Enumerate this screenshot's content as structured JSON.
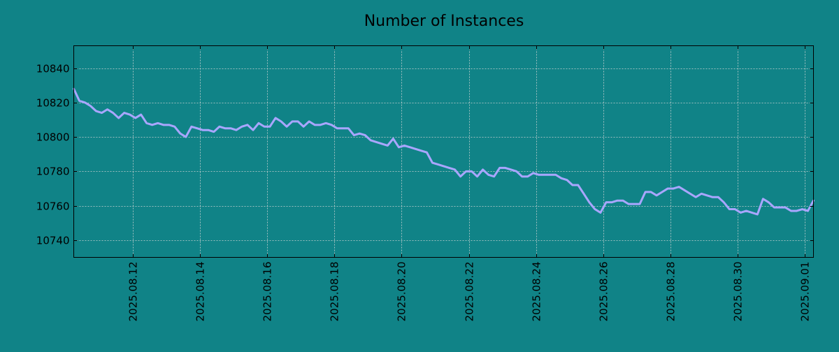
{
  "page": {
    "background_color": "#108387"
  },
  "chart_data": {
    "type": "line",
    "title": "Number of Instances",
    "xlabel": "",
    "ylabel": "",
    "x_range": [
      "2025.08.10 06:00",
      "2025.09.01 06:00"
    ],
    "ylim": [
      10730,
      10853
    ],
    "grid": true,
    "line_color": "#a9a6ff",
    "x_ticks": [
      "2025.08.12",
      "2025.08.14",
      "2025.08.16",
      "2025.08.18",
      "2025.08.20",
      "2025.08.22",
      "2025.08.24",
      "2025.08.26",
      "2025.08.28",
      "2025.08.30",
      "2025.09.01"
    ],
    "y_ticks": [
      10740,
      10760,
      10780,
      10800,
      10820,
      10840
    ],
    "series": [
      {
        "name": "",
        "x": [
          "2025.08.10 06:00",
          "2025.08.10 10:00",
          "2025.08.10 14:00",
          "2025.08.10 18:00",
          "2025.08.10 22:00",
          "2025.08.11 02:00",
          "2025.08.11 06:00",
          "2025.08.11 10:00",
          "2025.08.11 14:00",
          "2025.08.11 18:00",
          "2025.08.11 22:00",
          "2025.08.12 02:00",
          "2025.08.12 06:00",
          "2025.08.12 10:00",
          "2025.08.12 14:00",
          "2025.08.12 18:00",
          "2025.08.12 22:00",
          "2025.08.13 02:00",
          "2025.08.13 06:00",
          "2025.08.13 10:00",
          "2025.08.13 14:00",
          "2025.08.13 18:00",
          "2025.08.13 22:00",
          "2025.08.14 02:00",
          "2025.08.14 06:00",
          "2025.08.14 10:00",
          "2025.08.14 14:00",
          "2025.08.14 18:00",
          "2025.08.14 22:00",
          "2025.08.15 02:00",
          "2025.08.15 06:00",
          "2025.08.15 10:00",
          "2025.08.15 14:00",
          "2025.08.15 18:00",
          "2025.08.15 22:00",
          "2025.08.16 02:00",
          "2025.08.16 06:00",
          "2025.08.16 10:00",
          "2025.08.16 14:00",
          "2025.08.16 18:00",
          "2025.08.16 22:00",
          "2025.08.17 02:00",
          "2025.08.17 06:00",
          "2025.08.17 10:00",
          "2025.08.17 14:00",
          "2025.08.17 18:00",
          "2025.08.17 22:00",
          "2025.08.18 02:00",
          "2025.08.18 06:00",
          "2025.08.18 10:00",
          "2025.08.18 14:00",
          "2025.08.18 18:00",
          "2025.08.18 22:00",
          "2025.08.19 02:00",
          "2025.08.19 06:00",
          "2025.08.19 10:00",
          "2025.08.19 14:00",
          "2025.08.19 18:00",
          "2025.08.19 22:00",
          "2025.08.20 02:00",
          "2025.08.20 06:00",
          "2025.08.20 10:00",
          "2025.08.20 14:00",
          "2025.08.20 18:00",
          "2025.08.20 22:00",
          "2025.08.21 02:00",
          "2025.08.21 06:00",
          "2025.08.21 10:00",
          "2025.08.21 14:00",
          "2025.08.21 18:00",
          "2025.08.21 22:00",
          "2025.08.22 02:00",
          "2025.08.22 06:00",
          "2025.08.22 10:00",
          "2025.08.22 14:00",
          "2025.08.22 18:00",
          "2025.08.22 22:00",
          "2025.08.23 02:00",
          "2025.08.23 06:00",
          "2025.08.23 10:00",
          "2025.08.23 14:00",
          "2025.08.23 18:00",
          "2025.08.23 22:00",
          "2025.08.24 02:00",
          "2025.08.24 06:00",
          "2025.08.24 10:00",
          "2025.08.24 14:00",
          "2025.08.24 18:00",
          "2025.08.24 22:00",
          "2025.08.25 02:00",
          "2025.08.25 06:00",
          "2025.08.25 10:00",
          "2025.08.25 14:00",
          "2025.08.25 18:00",
          "2025.08.25 22:00",
          "2025.08.26 02:00",
          "2025.08.26 06:00",
          "2025.08.26 10:00",
          "2025.08.26 14:00",
          "2025.08.26 18:00",
          "2025.08.26 22:00",
          "2025.08.27 02:00",
          "2025.08.27 06:00",
          "2025.08.27 10:00",
          "2025.08.27 14:00",
          "2025.08.27 18:00",
          "2025.08.27 22:00",
          "2025.08.28 02:00",
          "2025.08.28 06:00",
          "2025.08.28 10:00",
          "2025.08.28 14:00",
          "2025.08.28 18:00",
          "2025.08.28 22:00",
          "2025.08.29 02:00",
          "2025.08.29 06:00",
          "2025.08.29 10:00",
          "2025.08.29 14:00",
          "2025.08.29 18:00",
          "2025.08.29 22:00",
          "2025.08.30 02:00",
          "2025.08.30 06:00",
          "2025.08.30 10:00",
          "2025.08.30 14:00",
          "2025.08.30 18:00",
          "2025.08.30 22:00",
          "2025.08.31 02:00",
          "2025.08.31 06:00",
          "2025.08.31 10:00",
          "2025.08.31 14:00",
          "2025.08.31 18:00",
          "2025.08.31 22:00",
          "2025.09.01 02:00",
          "2025.09.01 06:00"
        ],
        "values": [
          10828,
          10821,
          10820,
          10818,
          10815,
          10814,
          10816,
          10814,
          10811,
          10814,
          10813,
          10811,
          10813,
          10808,
          10807,
          10808,
          10807,
          10807,
          10806,
          10802,
          10800,
          10806,
          10805,
          10804,
          10804,
          10803,
          10806,
          10805,
          10805,
          10804,
          10806,
          10807,
          10804,
          10808,
          10806,
          10806,
          10811,
          10809,
          10806,
          10809,
          10809,
          10806,
          10809,
          10807,
          10807,
          10808,
          10807,
          10805,
          10805,
          10805,
          10801,
          10802,
          10801,
          10798,
          10797,
          10796,
          10795,
          10799,
          10794,
          10795,
          10794,
          10793,
          10792,
          10791,
          10785,
          10784,
          10783,
          10782,
          10781,
          10777,
          10780,
          10780,
          10777,
          10781,
          10778,
          10777,
          10782,
          10782,
          10781,
          10780,
          10777,
          10777,
          10779,
          10778,
          10778,
          10778,
          10778,
          10776,
          10775,
          10772,
          10772,
          10767,
          10762,
          10758,
          10756,
          10762,
          10762,
          10763,
          10763,
          10761,
          10761,
          10761,
          10768,
          10768,
          10766,
          10768,
          10770,
          10770,
          10771,
          10769,
          10767,
          10765,
          10767,
          10766,
          10765,
          10765,
          10762,
          10758,
          10758,
          10756,
          10757,
          10756,
          10755,
          10764,
          10762,
          10759,
          10759,
          10759,
          10757,
          10757,
          10758,
          10757,
          10763
        ]
      }
    ]
  }
}
